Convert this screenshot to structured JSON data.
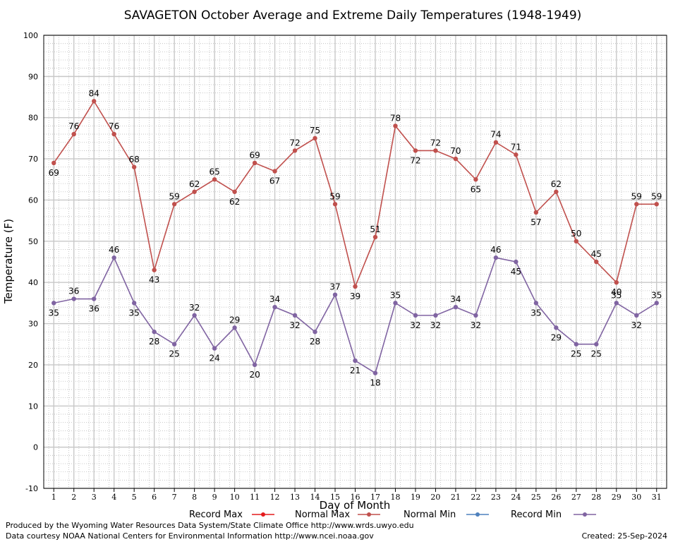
{
  "chart_data": {
    "type": "line",
    "title": "SAVAGETON October Average and Extreme Daily Temperatures (1948-1949)",
    "xlabel": "Day of Month",
    "ylabel": "Temperature (F)",
    "ylim": [
      -10,
      100
    ],
    "yticks": [
      -10,
      0,
      10,
      20,
      30,
      40,
      50,
      60,
      70,
      80,
      90,
      100
    ],
    "x": [
      1,
      2,
      3,
      4,
      5,
      6,
      7,
      8,
      9,
      10,
      11,
      12,
      13,
      14,
      15,
      16,
      17,
      18,
      19,
      20,
      21,
      22,
      23,
      24,
      25,
      26,
      27,
      28,
      29,
      30,
      31
    ],
    "grid": true,
    "legend_position": "bottom",
    "legend": [
      {
        "name": "Record Max",
        "color": "#e41a1c"
      },
      {
        "name": "Normal Max",
        "color": "#c0504d"
      },
      {
        "name": "Normal Min",
        "color": "#4f81bd"
      },
      {
        "name": "Record Min",
        "color": "#8064a2"
      }
    ],
    "series": [
      {
        "name": "Normal Max",
        "color": "#c0504d",
        "values": [
          69,
          76,
          84,
          76,
          68,
          43,
          59,
          62,
          65,
          62,
          69,
          67,
          72,
          75,
          59,
          39,
          51,
          78,
          72,
          72,
          70,
          65,
          74,
          71,
          57,
          62,
          50,
          45,
          40,
          59,
          59
        ]
      },
      {
        "name": "Record Min",
        "color": "#8064a2",
        "values": [
          35,
          36,
          36,
          46,
          35,
          28,
          25,
          32,
          24,
          29,
          20,
          34,
          32,
          28,
          37,
          21,
          18,
          35,
          32,
          32,
          34,
          32,
          46,
          45,
          35,
          29,
          25,
          25,
          35,
          32,
          35
        ]
      }
    ]
  },
  "footer": {
    "line1": "Produced by the Wyoming Water Resources Data System/State Climate Office http://www.wrds.uwyo.edu",
    "line2": "Data courtesy NOAA National Centers for Environmental Information http://www.ncei.noaa.gov",
    "created": "Created:  25-Sep-2024"
  }
}
